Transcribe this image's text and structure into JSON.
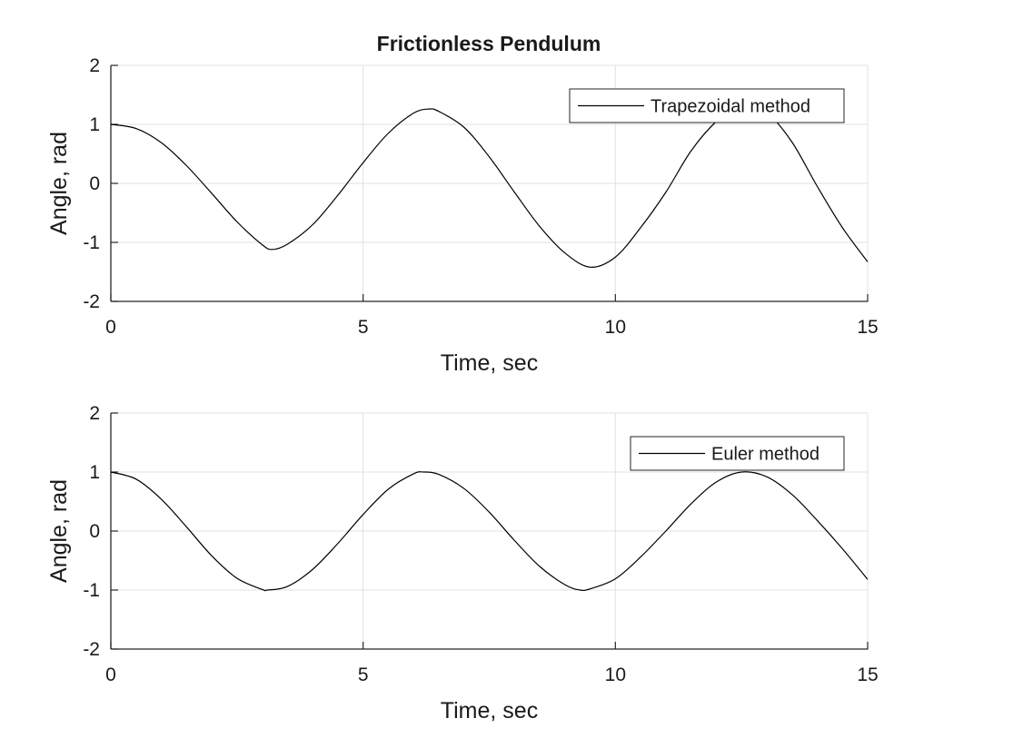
{
  "figure_title": "Frictionless Pendulum",
  "colors": {
    "line": "#000000",
    "grid": "#e1e1e1",
    "axis": "#262626",
    "background": "#ffffff"
  },
  "chart_data": [
    {
      "type": "line",
      "title": "Frictionless Pendulum",
      "xlabel": "Time, sec",
      "ylabel": "Angle, rad",
      "xlim": [
        0,
        15
      ],
      "ylim": [
        -2,
        2
      ],
      "xticks": [
        0,
        5,
        10,
        15
      ],
      "yticks": [
        -2,
        -1,
        0,
        1,
        2
      ],
      "grid": true,
      "legend_position": "top-right",
      "series": [
        {
          "name": "Trapezoidal method",
          "x": [
            0,
            0.5,
            1,
            1.5,
            2,
            2.5,
            3,
            3.2,
            3.5,
            4,
            4.5,
            5,
            5.5,
            6,
            6.3,
            6.5,
            7,
            7.5,
            8,
            8.5,
            9,
            9.5,
            10,
            10.5,
            11,
            11.5,
            12,
            12.5,
            13,
            13.5,
            14,
            14.5,
            15
          ],
          "y": [
            1.0,
            0.93,
            0.69,
            0.3,
            -0.17,
            -0.65,
            -1.04,
            -1.12,
            -1.03,
            -0.7,
            -0.2,
            0.35,
            0.85,
            1.19,
            1.26,
            1.22,
            0.95,
            0.45,
            -0.15,
            -0.73,
            -1.18,
            -1.42,
            -1.25,
            -0.75,
            -0.15,
            0.55,
            1.05,
            1.35,
            1.2,
            0.7,
            -0.05,
            -0.75,
            -1.33
          ]
        }
      ]
    },
    {
      "type": "line",
      "title": "",
      "xlabel": "Time, sec",
      "ylabel": "Angle, rad",
      "xlim": [
        0,
        15
      ],
      "ylim": [
        -2,
        2
      ],
      "xticks": [
        0,
        5,
        10,
        15
      ],
      "yticks": [
        -2,
        -1,
        0,
        1,
        2
      ],
      "grid": true,
      "legend_position": "top-right",
      "series": [
        {
          "name": "Euler method",
          "x": [
            0,
            0.5,
            1,
            1.5,
            2,
            2.5,
            3,
            3.1,
            3.5,
            4,
            4.5,
            5,
            5.5,
            6,
            6.2,
            6.5,
            7,
            7.5,
            8,
            8.5,
            9,
            9.3,
            9.5,
            10,
            10.5,
            11,
            11.5,
            12,
            12.5,
            13,
            13.5,
            14,
            14.5,
            15
          ],
          "y": [
            1.0,
            0.88,
            0.54,
            0.07,
            -0.42,
            -0.8,
            -0.99,
            -1.0,
            -0.94,
            -0.65,
            -0.21,
            0.28,
            0.71,
            0.97,
            1.0,
            0.96,
            0.72,
            0.32,
            -0.16,
            -0.6,
            -0.91,
            -1.0,
            -0.98,
            -0.81,
            -0.44,
            0.0,
            0.46,
            0.83,
            1.0,
            0.92,
            0.62,
            0.18,
            -0.3,
            -0.82
          ]
        }
      ]
    }
  ]
}
